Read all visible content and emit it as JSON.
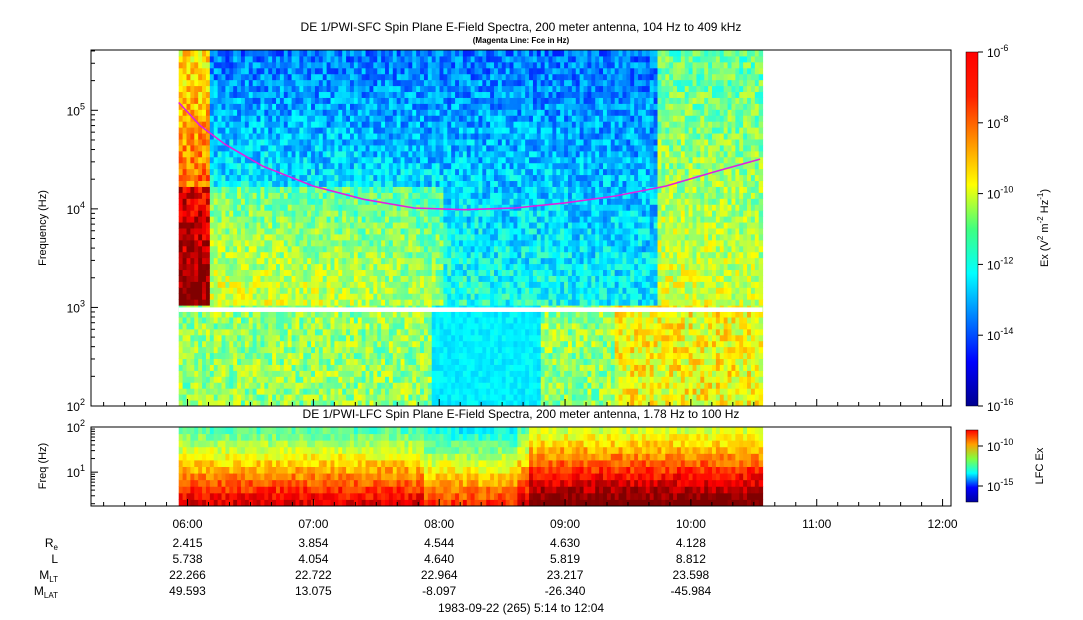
{
  "chart_data": [
    {
      "type": "heatmap",
      "title": "DE 1/PWI-SFC  Spin Plane E-Field Spectra, 200 meter antenna, 104 Hz to 409 kHz",
      "subtitle": "(Magenta Line: Fce in Hz)",
      "ylabel": "Frequency (Hz)",
      "yscale": "log",
      "ylim": [
        100,
        409000
      ],
      "yticks": [
        {
          "value": 100,
          "base": "10",
          "exp": "2"
        },
        {
          "value": 1000,
          "base": "10",
          "exp": "3"
        },
        {
          "value": 10000,
          "base": "10",
          "exp": "4"
        },
        {
          "value": 100000,
          "base": "10",
          "exp": "5"
        }
      ],
      "data_gap_hz": [
        900,
        1000
      ],
      "colorbar": {
        "label_parts": [
          "Ex (V",
          "2",
          " m",
          "-2",
          " Hz",
          "-1",
          ")"
        ],
        "range": [
          1e-16,
          1e-06
        ],
        "ticks": [
          {
            "value": 1e-06,
            "base": "10",
            "exp": "-6"
          },
          {
            "value": 1e-08,
            "base": "10",
            "exp": "-8"
          },
          {
            "value": 1e-10,
            "base": "10",
            "exp": "-10"
          },
          {
            "value": 1e-12,
            "base": "10",
            "exp": "-12"
          },
          {
            "value": 1e-14,
            "base": "10",
            "exp": "-14"
          },
          {
            "value": 1e-16,
            "base": "10",
            "exp": "-16"
          }
        ]
      },
      "fce_line": {
        "color": "#e020e0",
        "x_hours": [
          5.93,
          6.1,
          6.3,
          6.6,
          7.0,
          7.4,
          7.8,
          8.2,
          8.6,
          9.0,
          9.4,
          9.8,
          10.2,
          10.55
        ],
        "y_hz": [
          120000,
          70000,
          45000,
          27000,
          17000,
          12500,
          10200,
          9800,
          10200,
          11500,
          13500,
          17000,
          24000,
          32000
        ]
      }
    },
    {
      "type": "heatmap",
      "title": "DE 1/PWI-LFC  Spin Plane E-Field Spectra, 200 meter antenna, 1.78 Hz to 100 Hz",
      "ylabel": "Freq (Hz)",
      "yscale": "log",
      "ylim": [
        1.78,
        100
      ],
      "yticks": [
        {
          "value": 10,
          "base": "10",
          "exp": "1"
        },
        {
          "value": 100,
          "base": "10",
          "exp": "2"
        }
      ],
      "colorbar": {
        "label": "LFC Ex",
        "range": [
          1e-17,
          1e-08
        ],
        "ticks": [
          {
            "value": 1e-10,
            "base": "10",
            "exp": "-10"
          },
          {
            "value": 1e-15,
            "base": "10",
            "exp": "-15"
          }
        ]
      }
    }
  ],
  "time_axis": {
    "xlim_hours": [
      5.233,
      12.067
    ],
    "data_range_hours": [
      5.93,
      10.57
    ],
    "ticks": [
      {
        "value": 6,
        "label": "06:00"
      },
      {
        "value": 7,
        "label": "07:00"
      },
      {
        "value": 8,
        "label": "08:00"
      },
      {
        "value": 9,
        "label": "09:00"
      },
      {
        "value": 10,
        "label": "10:00"
      },
      {
        "value": 11,
        "label": "11:00"
      },
      {
        "value": 12,
        "label": "12:00"
      }
    ]
  },
  "ephemeris": [
    {
      "main": "R",
      "sub": "e",
      "values": [
        "2.415",
        "3.854",
        "4.544",
        "4.630",
        "4.128"
      ]
    },
    {
      "main": "L",
      "sub": "",
      "values": [
        "5.738",
        "4.054",
        "4.640",
        "5.819",
        "8.812"
      ]
    },
    {
      "main": "M",
      "sub": "LT",
      "values": [
        "22.266",
        "22.722",
        "22.964",
        "23.217",
        "23.598"
      ]
    },
    {
      "main": "M",
      "sub": "LAT",
      "values": [
        "49.593",
        "13.075",
        "-8.097",
        "-26.340",
        "-45.984"
      ]
    }
  ],
  "footer": "1983-09-22 (265) 5:14 to 12:04"
}
